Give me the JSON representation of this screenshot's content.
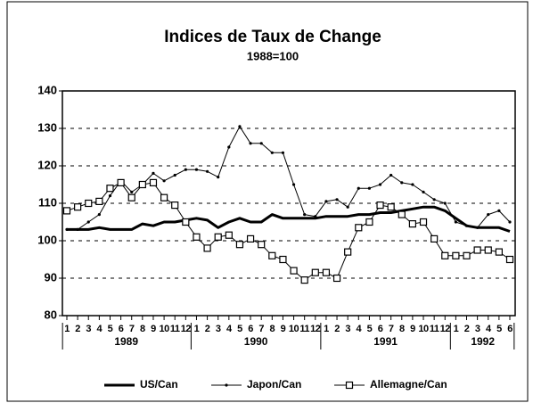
{
  "chart_data": {
    "type": "line",
    "title": "Indices de Taux de Change",
    "subtitle": "1988=100",
    "categories": [
      "1",
      "2",
      "3",
      "4",
      "5",
      "6",
      "7",
      "8",
      "9",
      "10",
      "11",
      "12",
      "1",
      "2",
      "3",
      "4",
      "5",
      "6",
      "7",
      "8",
      "9",
      "10",
      "11",
      "12",
      "1",
      "2",
      "3",
      "4",
      "5",
      "6",
      "7",
      "8",
      "9",
      "10",
      "11",
      "12",
      "1",
      "2",
      "3",
      "4",
      "5",
      "6"
    ],
    "year_groups": [
      {
        "label": "1989",
        "count": 12
      },
      {
        "label": "1990",
        "count": 12
      },
      {
        "label": "1991",
        "count": 12
      },
      {
        "label": "1992",
        "count": 6
      }
    ],
    "series": [
      {
        "name": "US/Can",
        "color": "#000000",
        "marker": "none",
        "width": 3,
        "values": [
          103,
          103,
          103,
          103.5,
          103,
          103,
          103,
          104.5,
          104,
          105,
          105,
          105.5,
          106,
          105.5,
          103.5,
          105,
          106,
          105,
          105,
          107,
          106,
          106,
          106,
          106,
          106.5,
          106.5,
          106.5,
          107,
          107,
          107.5,
          107.5,
          108,
          108.5,
          109,
          109,
          108,
          106,
          104,
          103.5,
          103.5,
          103.5,
          102.5
        ]
      },
      {
        "name": "Japon/Can",
        "color": "#000000",
        "marker": "dot",
        "width": 1,
        "values": [
          103,
          103,
          105,
          107,
          112,
          116,
          113,
          115,
          118,
          116,
          117.5,
          119,
          119,
          118.5,
          117,
          125,
          130.5,
          126,
          126,
          123.5,
          123.5,
          115,
          107,
          106.5,
          110.5,
          111,
          109,
          114,
          114,
          115,
          117.5,
          115.5,
          115,
          113,
          111,
          110,
          105,
          104,
          103.5,
          107,
          108,
          105
        ]
      },
      {
        "name": "Allemagne/Can",
        "color": "#000000",
        "marker": "square",
        "width": 1,
        "values": [
          108,
          109,
          110,
          110.5,
          114,
          115.5,
          111.5,
          115,
          115.5,
          111.5,
          109.5,
          105,
          101,
          98,
          101,
          101.5,
          99,
          100.5,
          99,
          96,
          95,
          92,
          89.5,
          91.5,
          91.5,
          90,
          97,
          103.5,
          105,
          109.5,
          109,
          107,
          104.5,
          105,
          100.5,
          96,
          96,
          96,
          97.5,
          97.5,
          97,
          95
        ]
      }
    ],
    "ylim": [
      80,
      140
    ],
    "yticks": [
      80,
      90,
      100,
      110,
      120,
      130,
      140
    ],
    "grid": true
  }
}
